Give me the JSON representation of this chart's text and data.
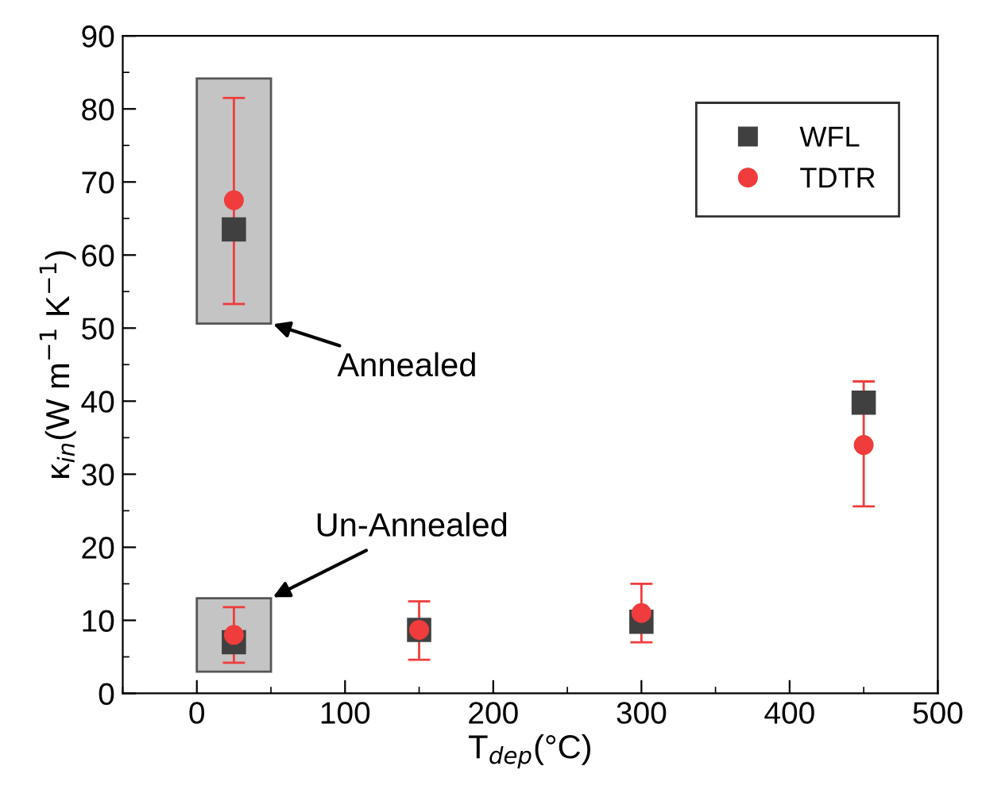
{
  "chart_data": {
    "type": "scatter",
    "xlabel": "T$_{dep}$(°C)",
    "ylabel": "κ$_{in}$(W m$^{−1}$ K$^{−1}$)",
    "x": [
      25,
      25,
      150,
      300,
      450
    ],
    "series": [
      {
        "name": "WFL",
        "color": "#404040",
        "marker": "square",
        "values": [
          63.5,
          7,
          8.7,
          9.8,
          39.8
        ]
      },
      {
        "name": "TDTR",
        "color": "#f03c3c",
        "marker": "circle",
        "values": [
          67.5,
          8,
          8.7,
          11,
          34
        ],
        "errors": [
          [
            53.3,
            81.5
          ],
          [
            4.2,
            11.8
          ],
          [
            4.6,
            12.6
          ],
          [
            7,
            15
          ],
          [
            25.6,
            42.7
          ]
        ]
      }
    ],
    "annotations": [
      "Annealed",
      "Un-Annealed"
    ],
    "xlim": [
      -50,
      500
    ],
    "xticks": [
      0,
      100,
      200,
      300,
      400,
      500
    ],
    "ylim": [
      0,
      90
    ],
    "yticks": [
      0,
      10,
      20,
      30,
      40,
      50,
      60,
      70,
      80,
      90
    ],
    "grid": false,
    "legend": "top right"
  }
}
